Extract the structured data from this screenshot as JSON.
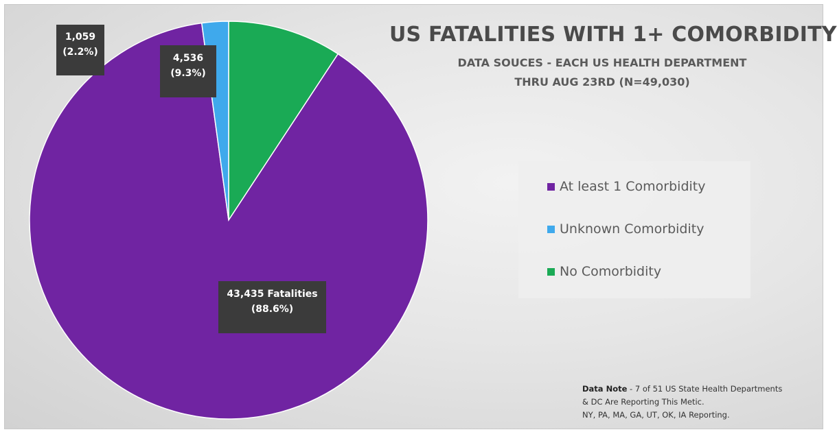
{
  "chart_data": {
    "type": "pie",
    "title": "US FATALITIES WITH 1+ COMORBIDITY",
    "subtitle_line1": "DATA SOUCES - EACH US HEALTH DEPARTMENT",
    "subtitle_line2": "THRU AUG 23RD (N=49,030)",
    "slices": [
      {
        "name": "No Comorbidity",
        "value": 4536,
        "percent": 9.3,
        "color": "#1aaa55",
        "label_line1": "4,536",
        "label_line2": "(9.3%)"
      },
      {
        "name": "At least 1 Comorbidity",
        "value": 43435,
        "percent": 88.6,
        "color": "#7024a2",
        "label_line1": "43,435 Fatalities",
        "label_line2": "(88.6%)"
      },
      {
        "name": "Unknown Comorbidity",
        "value": 1059,
        "percent": 2.2,
        "color": "#3fa9ec",
        "label_line1": "1,059",
        "label_line2": "(2.2%)"
      }
    ],
    "legend": {
      "placement": "right",
      "items": [
        "At least 1 Comorbidity",
        "Unknown Comorbidity",
        "No Comorbidity"
      ],
      "colors": [
        "#7024a2",
        "#3fa9ec",
        "#1aaa55"
      ]
    }
  },
  "note": {
    "bold": "Data Note",
    "line1_rest": " - 7 of 51 US State Health Departments",
    "line2": "& DC Are Reporting This Metic.",
    "line3": "NY, PA, MA, GA, UT, OK, IA Reporting."
  }
}
